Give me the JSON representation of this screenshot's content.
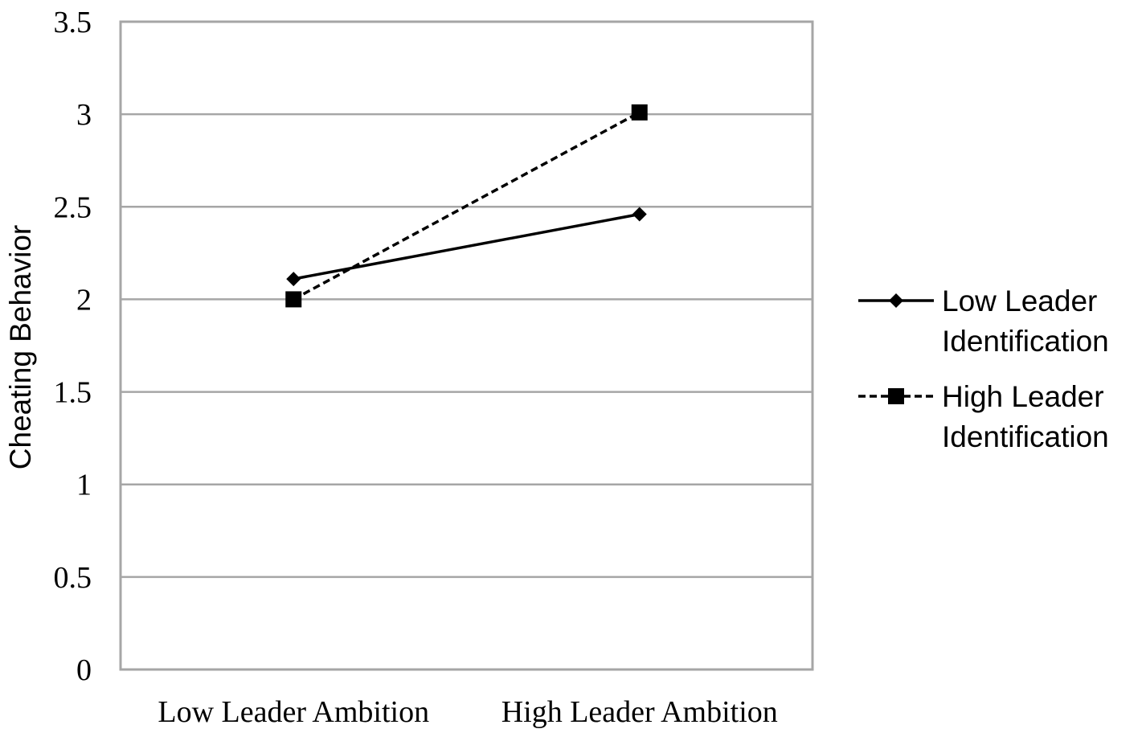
{
  "chart_data": {
    "type": "line",
    "categories": [
      "Low Leader Ambition",
      "High Leader Ambition"
    ],
    "series": [
      {
        "name": "Low Leader Identification",
        "name_lines": [
          "Low Leader",
          "Identification"
        ],
        "values": [
          2.11,
          2.46
        ],
        "line_style": "solid",
        "marker": "diamond",
        "color": "#000000"
      },
      {
        "name": "High Leader Identification",
        "name_lines": [
          "High Leader",
          "Identification"
        ],
        "values": [
          2.0,
          3.01
        ],
        "line_style": "dashed",
        "marker": "square",
        "color": "#000000"
      }
    ],
    "title": "",
    "xlabel": "",
    "ylabel": "Cheating Behavior",
    "ylim": [
      0,
      3.5
    ],
    "yticks": [
      "0",
      "0.5",
      "1",
      "1.5",
      "2",
      "2.5",
      "3",
      "3.5"
    ],
    "grid": true,
    "grid_color": "#a6a6a6",
    "legend_position": "right"
  }
}
